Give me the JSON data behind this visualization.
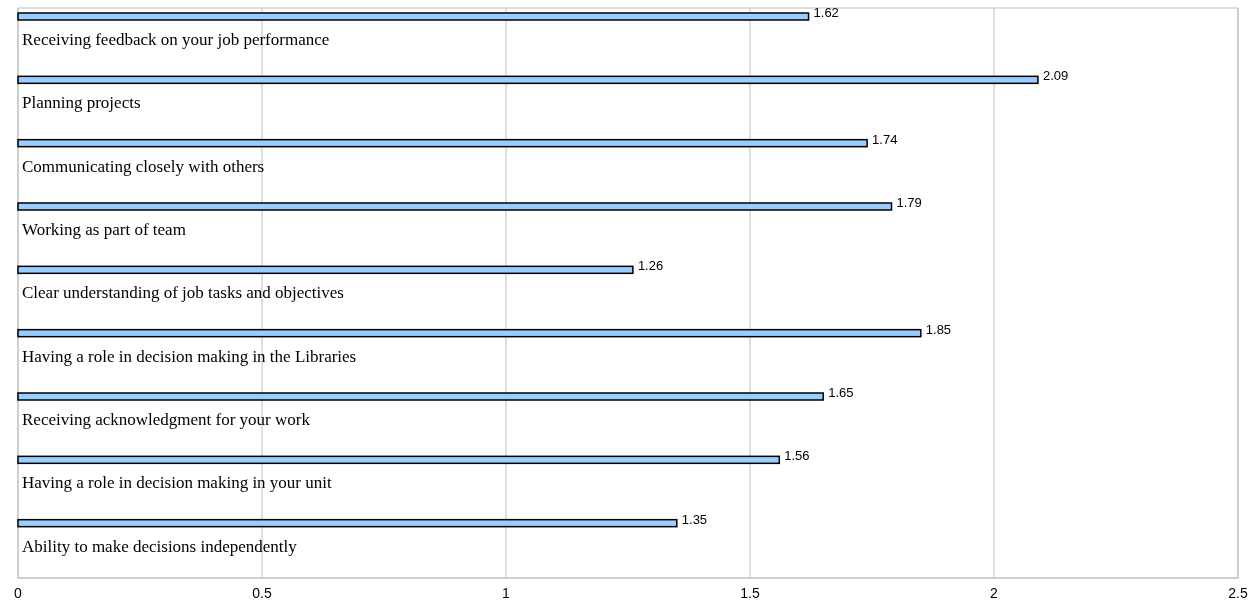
{
  "chart_data": {
    "type": "bar",
    "orientation": "horizontal",
    "categories": [
      "Receiving feedback on your job performance",
      "Planning projects",
      "Communicating closely with others",
      "Working as part of team",
      "Clear understanding of job tasks and objectives",
      "Having a role in decision making in the Libraries",
      "Receiving acknowledgment for your work",
      "Having a role in decision making in your unit",
      "Ability to make decisions independently"
    ],
    "values": [
      1.62,
      2.09,
      1.74,
      1.79,
      1.26,
      1.85,
      1.65,
      1.56,
      1.35
    ],
    "color": "#99ccff",
    "xlim": [
      0,
      2.5
    ],
    "xticks": [
      0,
      0.5,
      1,
      1.5,
      2,
      2.5
    ],
    "grid": "x",
    "data_labels": true
  }
}
